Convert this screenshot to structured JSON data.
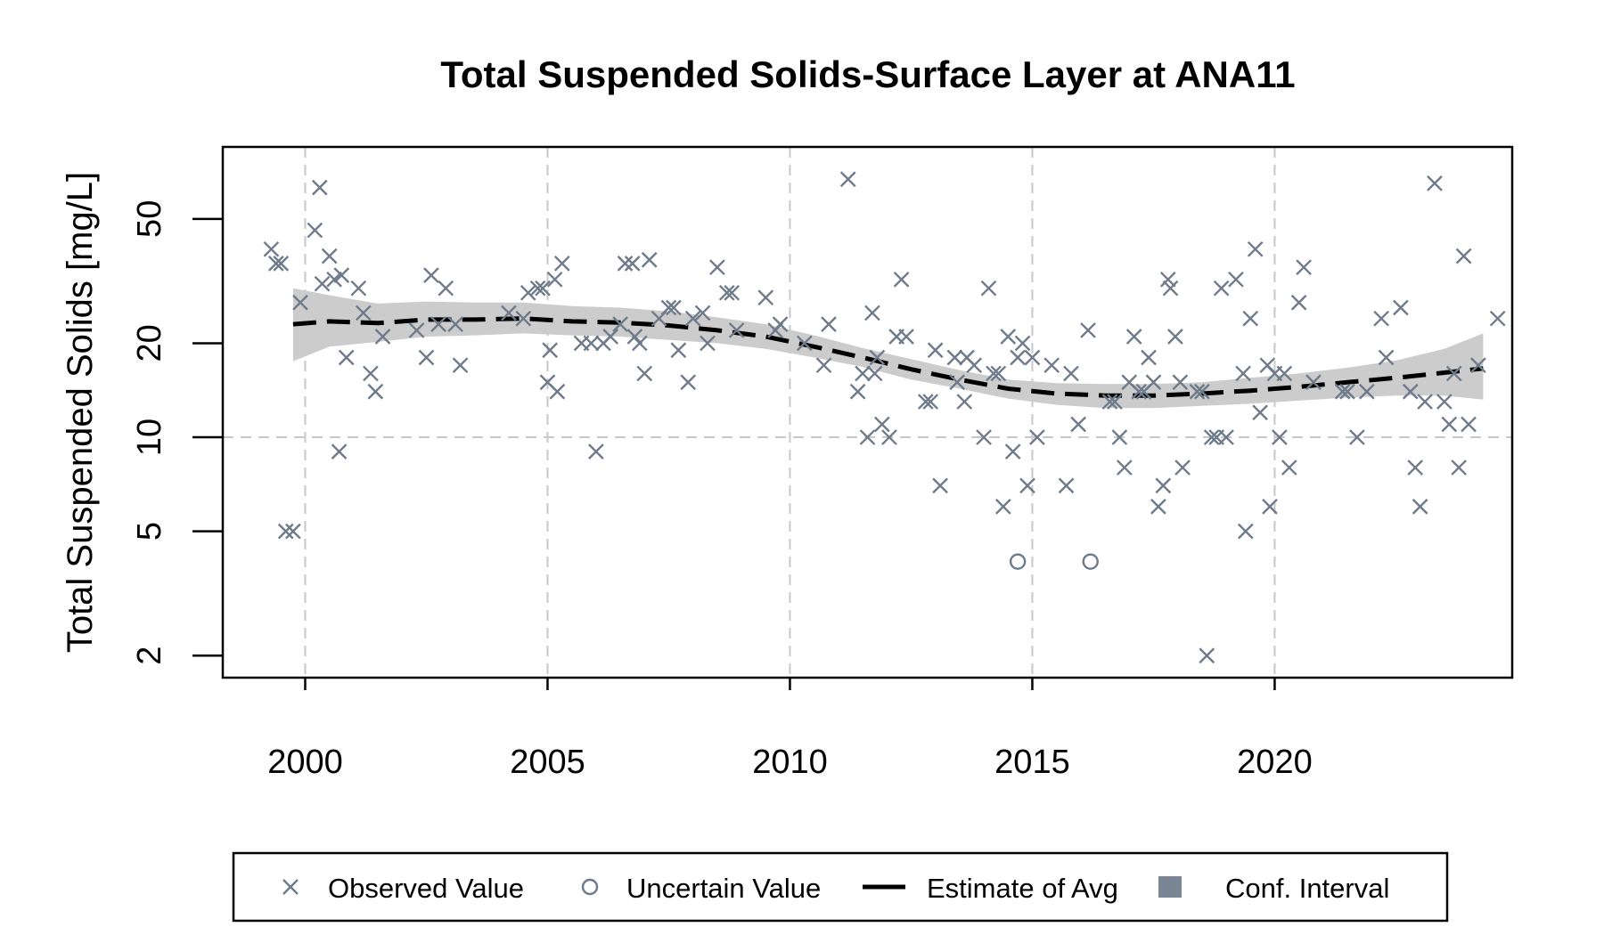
{
  "chart_data": {
    "type": "scatter",
    "title": "Total Suspended Solids-Surface Layer at ANA11",
    "xlabel": "",
    "ylabel": "Total Suspended Solids [mg/L]",
    "y_scale": "log",
    "xlim": [
      1998.3,
      2024.9
    ],
    "ylim": [
      1.7,
      85
    ],
    "x_ticks": [
      2000,
      2005,
      2010,
      2015,
      2020
    ],
    "x_tick_labels": [
      "2000",
      "2005",
      "2010",
      "2015",
      "2020"
    ],
    "y_ticks": [
      2,
      5,
      10,
      20,
      50
    ],
    "y_tick_labels": [
      "2",
      "5",
      "10",
      "20",
      "50"
    ],
    "grid": {
      "x": [
        2000,
        2005,
        2010,
        2015,
        2020
      ],
      "y": [
        10
      ]
    },
    "legend": {
      "placement": "bottom",
      "entries": [
        {
          "label": "Observed Value",
          "marker": "x"
        },
        {
          "label": "Uncertain Value",
          "marker": "circle"
        },
        {
          "label": "Estimate of Avg",
          "marker": "dashed-line"
        },
        {
          "label": "Conf. Interval",
          "marker": "square"
        }
      ]
    },
    "colors": {
      "points": "#6e7b8b",
      "estimate": "#000000",
      "ci_band": "#cccccc",
      "ci_legend": "#7a8694",
      "grid": "#c8c8c8"
    },
    "series": [
      {
        "name": "Observed Value",
        "points": [
          [
            1999.3,
            40
          ],
          [
            1999.4,
            36
          ],
          [
            1999.5,
            36
          ],
          [
            1999.6,
            5
          ],
          [
            1999.75,
            5
          ],
          [
            1999.9,
            27
          ],
          [
            2000.2,
            46
          ],
          [
            2000.3,
            63
          ],
          [
            2000.35,
            31
          ],
          [
            2000.5,
            38
          ],
          [
            2000.6,
            32
          ],
          [
            2000.7,
            9
          ],
          [
            2000.75,
            33
          ],
          [
            2000.85,
            18
          ],
          [
            2001.1,
            30
          ],
          [
            2001.2,
            25
          ],
          [
            2001.35,
            16
          ],
          [
            2001.45,
            14
          ],
          [
            2001.6,
            21
          ],
          [
            2002.3,
            22
          ],
          [
            2002.5,
            18
          ],
          [
            2002.6,
            33
          ],
          [
            2002.75,
            23
          ],
          [
            2002.9,
            30
          ],
          [
            2003.1,
            23
          ],
          [
            2003.2,
            17
          ],
          [
            2004.2,
            25
          ],
          [
            2004.5,
            24
          ],
          [
            2004.6,
            29
          ],
          [
            2004.8,
            30
          ],
          [
            2004.9,
            30
          ],
          [
            2005.0,
            15
          ],
          [
            2005.05,
            19
          ],
          [
            2005.15,
            32
          ],
          [
            2005.2,
            14
          ],
          [
            2005.3,
            36
          ],
          [
            2005.7,
            20
          ],
          [
            2005.9,
            20
          ],
          [
            2006.0,
            9
          ],
          [
            2006.15,
            20
          ],
          [
            2006.3,
            21
          ],
          [
            2006.5,
            23
          ],
          [
            2006.6,
            36
          ],
          [
            2006.75,
            36
          ],
          [
            2006.8,
            21
          ],
          [
            2006.9,
            20
          ],
          [
            2007.0,
            16
          ],
          [
            2007.1,
            37
          ],
          [
            2007.3,
            24
          ],
          [
            2007.5,
            26
          ],
          [
            2007.6,
            26
          ],
          [
            2007.7,
            19
          ],
          [
            2007.9,
            15
          ],
          [
            2008.0,
            24
          ],
          [
            2008.2,
            25
          ],
          [
            2008.3,
            20
          ],
          [
            2008.5,
            35
          ],
          [
            2008.7,
            29
          ],
          [
            2008.8,
            29
          ],
          [
            2008.9,
            22
          ],
          [
            2009.5,
            28
          ],
          [
            2009.7,
            22
          ],
          [
            2009.8,
            23
          ],
          [
            2010.3,
            20
          ],
          [
            2010.7,
            17
          ],
          [
            2010.8,
            23
          ],
          [
            2011.2,
            67
          ],
          [
            2011.4,
            14
          ],
          [
            2011.5,
            16
          ],
          [
            2011.6,
            10
          ],
          [
            2011.7,
            25
          ],
          [
            2011.75,
            16
          ],
          [
            2011.8,
            18
          ],
          [
            2011.9,
            11
          ],
          [
            2012.05,
            10
          ],
          [
            2012.2,
            21
          ],
          [
            2012.3,
            32
          ],
          [
            2012.4,
            21
          ],
          [
            2012.8,
            13
          ],
          [
            2012.9,
            13
          ],
          [
            2013.0,
            19
          ],
          [
            2013.1,
            7
          ],
          [
            2013.4,
            18
          ],
          [
            2013.45,
            15
          ],
          [
            2013.6,
            13
          ],
          [
            2013.65,
            18
          ],
          [
            2013.8,
            17
          ],
          [
            2014.0,
            10
          ],
          [
            2014.1,
            30
          ],
          [
            2014.2,
            16
          ],
          [
            2014.3,
            16
          ],
          [
            2014.4,
            6
          ],
          [
            2014.5,
            21
          ],
          [
            2014.6,
            9
          ],
          [
            2014.7,
            18
          ],
          [
            2014.8,
            20
          ],
          [
            2014.9,
            7
          ],
          [
            2015.0,
            18
          ],
          [
            2015.1,
            10
          ],
          [
            2015.4,
            17
          ],
          [
            2015.7,
            7
          ],
          [
            2015.8,
            16
          ],
          [
            2015.95,
            11
          ],
          [
            2016.15,
            22
          ],
          [
            2016.6,
            13
          ],
          [
            2016.7,
            13
          ],
          [
            2016.8,
            10
          ],
          [
            2016.9,
            8
          ],
          [
            2017.0,
            15
          ],
          [
            2017.1,
            21
          ],
          [
            2017.2,
            14
          ],
          [
            2017.3,
            14
          ],
          [
            2017.4,
            18
          ],
          [
            2017.5,
            15
          ],
          [
            2017.6,
            6
          ],
          [
            2017.7,
            7
          ],
          [
            2017.8,
            32
          ],
          [
            2017.85,
            30
          ],
          [
            2017.95,
            21
          ],
          [
            2018.05,
            15
          ],
          [
            2018.1,
            8
          ],
          [
            2018.4,
            14
          ],
          [
            2018.5,
            14
          ],
          [
            2018.6,
            2
          ],
          [
            2018.7,
            10
          ],
          [
            2018.8,
            10
          ],
          [
            2018.9,
            30
          ],
          [
            2019.0,
            10
          ],
          [
            2019.2,
            32
          ],
          [
            2019.35,
            16
          ],
          [
            2019.4,
            5
          ],
          [
            2019.5,
            24
          ],
          [
            2019.6,
            40
          ],
          [
            2019.7,
            12
          ],
          [
            2019.85,
            17
          ],
          [
            2019.9,
            6
          ],
          [
            2020.0,
            16
          ],
          [
            2020.1,
            10
          ],
          [
            2020.2,
            16
          ],
          [
            2020.3,
            8
          ],
          [
            2020.5,
            27
          ],
          [
            2020.6,
            35
          ],
          [
            2020.8,
            15
          ],
          [
            2021.4,
            14
          ],
          [
            2021.5,
            14
          ],
          [
            2021.7,
            10
          ],
          [
            2021.9,
            14
          ],
          [
            2022.2,
            24
          ],
          [
            2022.3,
            18
          ],
          [
            2022.6,
            26
          ],
          [
            2022.8,
            14
          ],
          [
            2022.9,
            8
          ],
          [
            2023.0,
            6
          ],
          [
            2023.1,
            13
          ],
          [
            2023.3,
            65
          ],
          [
            2023.5,
            13
          ],
          [
            2023.6,
            11
          ],
          [
            2023.7,
            16
          ],
          [
            2023.8,
            8
          ],
          [
            2023.9,
            38
          ],
          [
            2024.0,
            11
          ],
          [
            2024.2,
            17
          ],
          [
            2024.6,
            24
          ]
        ]
      },
      {
        "name": "Uncertain Value",
        "points": [
          [
            2014.7,
            4
          ],
          [
            2016.2,
            4
          ]
        ]
      },
      {
        "name": "Estimate of Avg",
        "x": [
          1999.75,
          2000.5,
          2001.5,
          2002.5,
          2003.5,
          2004.5,
          2005.5,
          2006.5,
          2007.5,
          2008.5,
          2009.5,
          2010.5,
          2011.5,
          2012.5,
          2013.5,
          2014.5,
          2015.5,
          2016.5,
          2017.5,
          2018.5,
          2019.5,
          2020.5,
          2021.5,
          2022.5,
          2023.5,
          2024.3
        ],
        "values": [
          23,
          23.5,
          23.2,
          23.8,
          23.8,
          24,
          23.5,
          23.3,
          22.8,
          22,
          21,
          19.5,
          18,
          16.5,
          15.3,
          14.3,
          13.8,
          13.6,
          13.6,
          13.8,
          14.1,
          14.5,
          15,
          15.5,
          16.1,
          16.6
        ],
        "ci_lower": [
          17.5,
          19.5,
          20.2,
          21,
          21.2,
          21.5,
          21.2,
          21,
          20.5,
          20,
          19.2,
          18,
          16.8,
          15.3,
          14.3,
          13.3,
          12.7,
          12.4,
          12.4,
          12.6,
          12.8,
          13.1,
          13.4,
          13.6,
          13.6,
          13.2
        ],
        "ci_upper": [
          30,
          28.5,
          26.8,
          27.2,
          27,
          27,
          26.3,
          26,
          25.3,
          24.2,
          23,
          21.2,
          19.3,
          17.8,
          16.4,
          15.3,
          14.9,
          14.8,
          14.8,
          15,
          15.5,
          16,
          16.7,
          17.6,
          19.2,
          21.5
        ]
      }
    ]
  }
}
